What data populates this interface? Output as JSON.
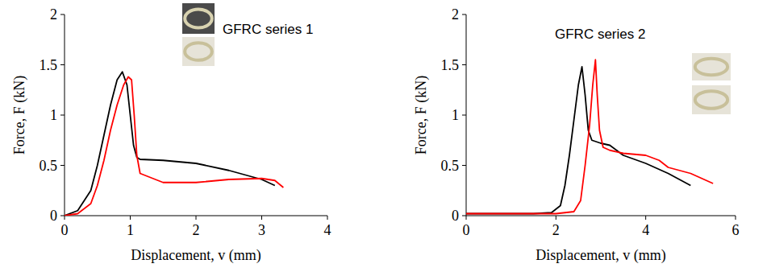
{
  "chart_data": [
    {
      "type": "line",
      "title": "GFRC series 1",
      "x_label": "Displacement, v (mm)",
      "y_label": "Force, F (kN)",
      "xlim": [
        0,
        4
      ],
      "xticks": [
        0,
        1,
        2,
        3,
        4
      ],
      "ylim": [
        0,
        2
      ],
      "yticks": [
        0,
        0.5,
        1,
        1.5,
        2
      ],
      "grid": false,
      "series": [
        {
          "color": "#000000",
          "x": [
            0,
            0.2,
            0.4,
            0.5,
            0.6,
            0.7,
            0.8,
            0.88,
            0.95,
            1.0,
            1.05,
            1.1,
            1.15,
            1.5,
            2.0,
            2.5,
            3.0,
            3.2
          ],
          "values": [
            0,
            0.05,
            0.25,
            0.5,
            0.8,
            1.1,
            1.35,
            1.43,
            1.3,
            1.0,
            0.7,
            0.58,
            0.56,
            0.55,
            0.52,
            0.45,
            0.36,
            0.3
          ]
        },
        {
          "color": "#ff0000",
          "x": [
            0,
            0.2,
            0.4,
            0.5,
            0.6,
            0.7,
            0.8,
            0.9,
            0.97,
            1.02,
            1.06,
            1.1,
            1.15,
            1.5,
            2.0,
            2.5,
            3.0,
            3.2,
            3.33
          ],
          "values": [
            0,
            0.02,
            0.12,
            0.3,
            0.55,
            0.85,
            1.1,
            1.3,
            1.38,
            1.35,
            1.0,
            0.6,
            0.42,
            0.33,
            0.33,
            0.36,
            0.37,
            0.35,
            0.28
          ]
        }
      ]
    },
    {
      "type": "line",
      "title": "GFRC series 2",
      "x_label": "Displacement, v (mm)",
      "y_label": "Force, F (kN)",
      "xlim": [
        0,
        6
      ],
      "xticks": [
        0,
        2,
        4,
        6
      ],
      "ylim": [
        0,
        2
      ],
      "yticks": [
        0,
        0.5,
        1,
        1.5,
        2
      ],
      "grid": false,
      "series": [
        {
          "color": "#000000",
          "x": [
            0,
            1.5,
            1.9,
            2.1,
            2.2,
            2.3,
            2.4,
            2.5,
            2.58,
            2.65,
            2.72,
            2.8,
            3.0,
            3.2,
            3.5,
            4.0,
            4.5,
            5.0
          ],
          "values": [
            0.02,
            0.02,
            0.03,
            0.1,
            0.3,
            0.6,
            0.95,
            1.3,
            1.48,
            1.2,
            0.85,
            0.75,
            0.72,
            0.7,
            0.6,
            0.52,
            0.42,
            0.3
          ]
        },
        {
          "color": "#ff0000",
          "x": [
            0,
            2.0,
            2.4,
            2.55,
            2.65,
            2.75,
            2.82,
            2.88,
            2.92,
            2.97,
            3.05,
            3.2,
            3.5,
            4.0,
            4.3,
            4.5,
            5.0,
            5.5
          ],
          "values": [
            0.02,
            0.02,
            0.04,
            0.15,
            0.5,
            0.9,
            1.3,
            1.55,
            1.2,
            0.85,
            0.68,
            0.65,
            0.62,
            0.6,
            0.55,
            0.48,
            0.42,
            0.32
          ]
        }
      ]
    }
  ]
}
